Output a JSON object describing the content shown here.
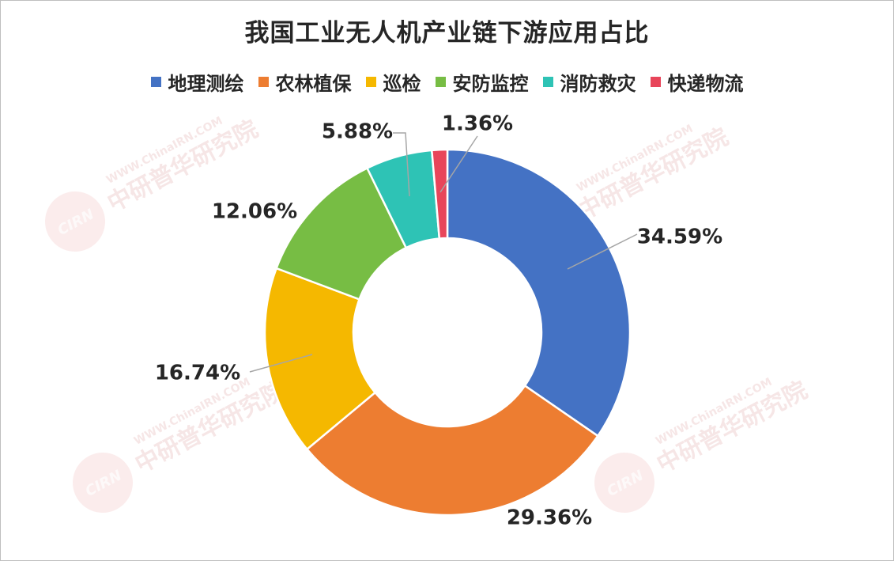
{
  "chart_data": {
    "type": "pie",
    "title": "我国工业无人机产业链下游应用占比",
    "categories": [
      "地理测绘",
      "农林植保",
      "巡检",
      "安防监控",
      "消防救灾",
      "快递物流"
    ],
    "values": [
      34.59,
      29.36,
      16.74,
      12.06,
      5.88,
      1.36
    ],
    "labels": [
      "34.59%",
      "29.36%",
      "16.74%",
      "12.06%",
      "5.88%",
      "1.36%"
    ],
    "colors": [
      "#4472c4",
      "#ed7d31",
      "#f5b800",
      "#77bd44",
      "#2ec3b5",
      "#e8455a"
    ],
    "legend": "top",
    "donut": true
  },
  "watermark": {
    "brand_cn": "中研普华研究院",
    "brand_web": "WWW.ChinaIRN.COM",
    "logo": "CIRN"
  }
}
